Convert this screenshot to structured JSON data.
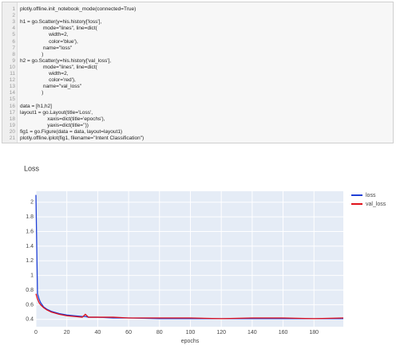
{
  "code": {
    "lines": [
      {
        "n": 1,
        "text": "plotly.offline.init_notebook_mode(connected=True)"
      },
      {
        "n": 2,
        "text": null
      },
      {
        "n": 3,
        "text": "h1 = go.Scatter(y=his.history['loss'],"
      },
      {
        "n": 4,
        "text": "                mode=\"lines\", line=dict("
      },
      {
        "n": 5,
        "text": "                    width=2,"
      },
      {
        "n": 6,
        "text": "                    color='blue'),"
      },
      {
        "n": 7,
        "text": "                name=\"loss\""
      },
      {
        "n": 8,
        "text": "               )"
      },
      {
        "n": 9,
        "text": "h2 = go.Scatter(y=his.history['val_loss'],"
      },
      {
        "n": 10,
        "text": "                mode=\"lines\", line=dict("
      },
      {
        "n": 11,
        "text": "                    width=2,"
      },
      {
        "n": 12,
        "text": "                    color='red'),"
      },
      {
        "n": 13,
        "text": "                name=\"val_loss\""
      },
      {
        "n": 14,
        "text": "               )"
      },
      {
        "n": 15,
        "text": null
      },
      {
        "n": 16,
        "text": "data = [h1,h2]"
      },
      {
        "n": 17,
        "text": "layout1 = go.Layout(title='Loss',"
      },
      {
        "n": 18,
        "text": "                   xaxis=dict(title='epochs'),"
      },
      {
        "n": 19,
        "text": "                   yaxis=dict(title=''))"
      },
      {
        "n": 20,
        "text": "fig1 = go.Figure(data = data, layout=layout1)"
      },
      {
        "n": 21,
        "text": "plotly.offline.iplot(fig1, filename=\"Intent Classification\")"
      }
    ]
  },
  "chart_data": {
    "type": "line",
    "title": "Loss",
    "x_label": "epochs",
    "x": [
      0,
      1,
      2,
      3,
      4,
      5,
      7,
      10,
      15,
      20,
      25,
      30,
      32,
      34,
      40,
      50,
      60,
      80,
      100,
      120,
      140,
      160,
      180,
      199
    ],
    "series": [
      {
        "name": "loss",
        "color": "#1f3fd6",
        "values": [
          2.1,
          0.75,
          0.68,
          0.63,
          0.6,
          0.57,
          0.54,
          0.51,
          0.48,
          0.46,
          0.45,
          0.44,
          0.44,
          0.43,
          0.43,
          0.42,
          0.42,
          0.41,
          0.41,
          0.41,
          0.41,
          0.41,
          0.41,
          0.41
        ]
      },
      {
        "name": "val_loss",
        "color": "#e0101a",
        "values": [
          0.75,
          0.68,
          0.63,
          0.6,
          0.58,
          0.56,
          0.53,
          0.5,
          0.47,
          0.45,
          0.44,
          0.43,
          0.47,
          0.43,
          0.43,
          0.43,
          0.42,
          0.42,
          0.42,
          0.41,
          0.42,
          0.42,
          0.41,
          0.42
        ]
      }
    ],
    "xlim": [
      0,
      199
    ],
    "ylim": [
      0.3,
      2.15
    ],
    "xticks": [
      0,
      20,
      40,
      60,
      80,
      100,
      120,
      140,
      160,
      180
    ],
    "yticks": [
      0.4,
      0.6,
      0.8,
      1,
      1.2,
      1.4,
      1.6,
      1.8,
      2
    ],
    "grid": true,
    "legend": "top-right"
  }
}
